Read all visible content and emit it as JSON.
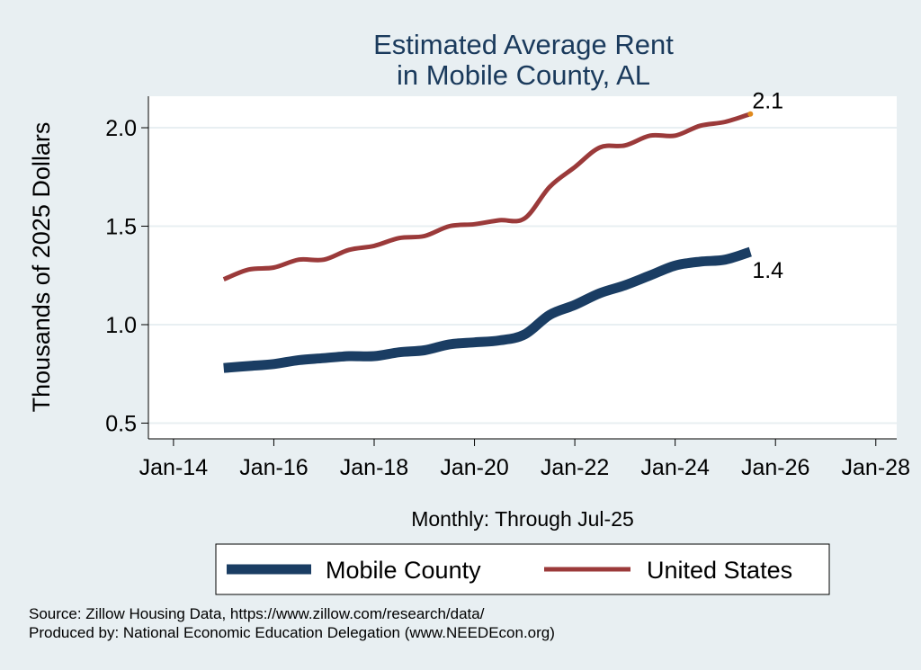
{
  "chart_data": {
    "type": "line",
    "title": "Estimated Average Rent",
    "subtitle": "in Mobile County, AL",
    "xlabel": "Monthly: Through Jul-25",
    "ylabel": "Thousands of 2025 Dollars",
    "xticks": [
      "Jan-14",
      "Jan-16",
      "Jan-18",
      "Jan-20",
      "Jan-22",
      "Jan-24",
      "Jan-26",
      "Jan-28"
    ],
    "yticks": [
      "0.5",
      "1.0",
      "1.5",
      "2.0"
    ],
    "xlim": [
      "2013-07",
      "2028-06"
    ],
    "ylim": [
      0.42,
      2.16
    ],
    "grid": true,
    "legend_position": "bottom",
    "x": [
      "2015-01",
      "2015-07",
      "2016-01",
      "2016-07",
      "2017-01",
      "2017-07",
      "2018-01",
      "2018-07",
      "2019-01",
      "2019-07",
      "2020-01",
      "2020-07",
      "2021-01",
      "2021-07",
      "2022-01",
      "2022-07",
      "2023-01",
      "2023-07",
      "2024-01",
      "2024-07",
      "2025-01",
      "2025-07"
    ],
    "series": [
      {
        "name": "Mobile County",
        "color": "#1a3d63",
        "values": [
          0.78,
          0.79,
          0.8,
          0.82,
          0.83,
          0.84,
          0.84,
          0.86,
          0.87,
          0.9,
          0.91,
          0.92,
          0.95,
          1.05,
          1.1,
          1.16,
          1.2,
          1.25,
          1.3,
          1.32,
          1.33,
          1.37
        ],
        "end_label": "1.4"
      },
      {
        "name": "United States",
        "color": "#9b3a3a",
        "values": [
          1.23,
          1.28,
          1.29,
          1.33,
          1.33,
          1.38,
          1.4,
          1.44,
          1.45,
          1.5,
          1.51,
          1.53,
          1.54,
          1.7,
          1.8,
          1.9,
          1.91,
          1.96,
          1.96,
          2.01,
          2.03,
          2.07
        ],
        "end_label": "2.1"
      }
    ],
    "notes": [
      "Source: Zillow Housing Data, https://www.zillow.com/research/data/",
      "Produced by: National Economic Education Delegation (www.NEEDEcon.org)"
    ]
  }
}
